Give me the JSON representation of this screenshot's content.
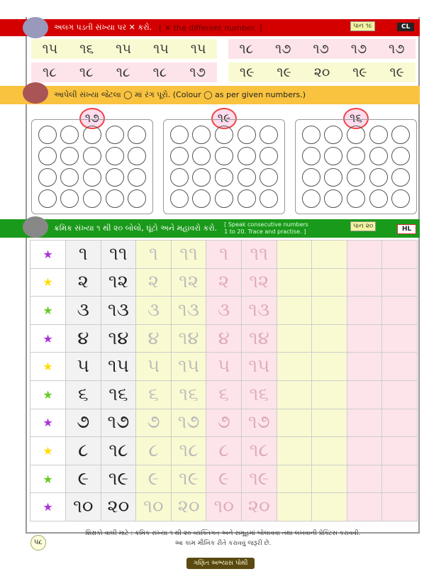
{
  "section1": {
    "instruction": "અલગ પડતી સંખ્યા પર ✕ કરો.",
    "instruction_en": "[ ✕ the different number. ]",
    "page_badge": "પાન ૧૯",
    "code": "CL",
    "rows": [
      [
        "૧૫",
        "૧૬",
        "૧૫",
        "૧૫",
        "૧૫",
        "૧૮",
        "૧૭",
        "૧૭",
        "૧૭",
        "૧૭"
      ],
      [
        "૧૮",
        "૧૮",
        "૧૮",
        "૧૮",
        "૧૭",
        "૧૯",
        "૧૯",
        "૨૦",
        "૧૯",
        "૧૯"
      ]
    ]
  },
  "section2": {
    "instruction": "આપેલી સંખ્યા જેટલા ◯ માં રંગ પૂરો. (Colour ◯ as per given numbers.)",
    "numbers": [
      "૧૭",
      "૧૯",
      "૧૬"
    ]
  },
  "section3": {
    "instruction": "ક્રમિક સંખ્યા ૧ થી ૨૦ બોલો, ઘૂંટો અને મહાવરો કરો.",
    "instruction_en": "[ Speak consecutive numbers 1 to 20. Trace and practise. ]",
    "page_badge": "પાન ૨૦",
    "code": "HL",
    "rows": [
      [
        "૧",
        "૧૧"
      ],
      [
        "૨",
        "૧૨"
      ],
      [
        "૩",
        "૧૩"
      ],
      [
        "૪",
        "૧૪"
      ],
      [
        "૫",
        "૧૫"
      ],
      [
        "૬",
        "૧૬"
      ],
      [
        "૭",
        "૧૭"
      ],
      [
        "૮",
        "૧૮"
      ],
      [
        "૯",
        "૧૯"
      ],
      [
        "૧૦",
        "૨૦"
      ]
    ]
  },
  "footer": {
    "note_line1": "શિક્ષકો વાલી માટે : ક્રમિક સંખ્યા ૧ થી ૨૦ વ્યક્તિગત અને સમૂહમાં બોલાવવા તથા લખવાની પ્રેક્ટિસ કરાવવી.",
    "note_line2": "આ કામ મૌખિક રીતે કરાવવું જરૂરી છે.",
    "page_number": "૫૮",
    "ribbon": "ગણિત અભ્યાસ પોથી"
  },
  "colors": {
    "red": "#d40000",
    "orange": "#f9c33f",
    "green": "#1a9a1a"
  }
}
